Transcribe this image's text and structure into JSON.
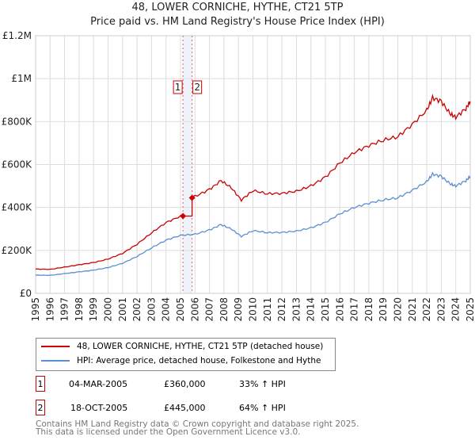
{
  "title": "48, LOWER CORNICHE, HYTHE, CT21 5TP",
  "subtitle": "Price paid vs. HM Land Registry's House Price Index (HPI)",
  "chart_data": {
    "type": "line",
    "title": "48, LOWER CORNICHE, HYTHE, CT21 5TP",
    "subtitle": "Price paid vs. HM Land Registry's House Price Index (HPI)",
    "xlim": [
      1995,
      2025
    ],
    "ylim": [
      0,
      1200000
    ],
    "x_ticks": [
      "1995",
      "1996",
      "1997",
      "1998",
      "1999",
      "2000",
      "2001",
      "2002",
      "2003",
      "2004",
      "2005",
      "2006",
      "2007",
      "2008",
      "2009",
      "2010",
      "2011",
      "2012",
      "2013",
      "2014",
      "2015",
      "2016",
      "2017",
      "2018",
      "2019",
      "2020",
      "2021",
      "2022",
      "2023",
      "2024",
      "2025"
    ],
    "y_ticks": [
      {
        "v": 0,
        "l": "£0"
      },
      {
        "v": 200000,
        "l": "£200K"
      },
      {
        "v": 400000,
        "l": "£400K"
      },
      {
        "v": 600000,
        "l": "£600K"
      },
      {
        "v": 800000,
        "l": "£800K"
      },
      {
        "v": 1000000,
        "l": "£1M"
      },
      {
        "v": 1200000,
        "l": "£1.2M"
      }
    ],
    "grid": true,
    "series": [
      {
        "name": "HPI: Average price, detached house, Folkestone and Hythe",
        "color": "#5b8fd0",
        "x": [
          1995,
          1996,
          1997,
          1998,
          1999,
          2000,
          2001,
          2002,
          2003,
          2004,
          2005,
          2006,
          2007,
          2007.8,
          2008.5,
          2009.2,
          2010,
          2011,
          2012,
          2013,
          2014,
          2015,
          2016,
          2017,
          2018,
          2019,
          2020,
          2021,
          2022,
          2022.4,
          2023,
          2023.6,
          2024,
          2024.7,
          2025
        ],
        "y": [
          85000,
          84000,
          92000,
          100000,
          108000,
          120000,
          140000,
          172000,
          212000,
          248000,
          270000,
          275000,
          295000,
          320000,
          300000,
          265000,
          292000,
          283000,
          284000,
          290000,
          305000,
          330000,
          370000,
          400000,
          420000,
          435000,
          445000,
          480000,
          520000,
          555000,
          545000,
          510000,
          500000,
          525000,
          545000
        ]
      },
      {
        "name": "48, LOWER CORNICHE, HYTHE, CT21 5TP (detached house)",
        "color": "#cc0000",
        "ratio_before": 1.33,
        "ratio_after": 1.64
      }
    ],
    "sales": [
      {
        "id": "1",
        "date": "04-MAR-2005",
        "x": 2005.17,
        "price": 360000,
        "price_label": "£360,000",
        "hpi": "33% ↑ HPI"
      },
      {
        "id": "2",
        "date": "18-OCT-2005",
        "x": 2005.8,
        "price": 445000,
        "price_label": "£445,000",
        "hpi": "64% ↑ HPI"
      }
    ]
  },
  "legend": {
    "red": "48, LOWER CORNICHE, HYTHE, CT21 5TP (detached house)",
    "blue": "HPI: Average price, detached house, Folkestone and Hythe"
  },
  "footer": {
    "line1": "Contains HM Land Registry data © Crown copyright and database right 2025.",
    "line2": "This data is licensed under the Open Government Licence v3.0."
  }
}
